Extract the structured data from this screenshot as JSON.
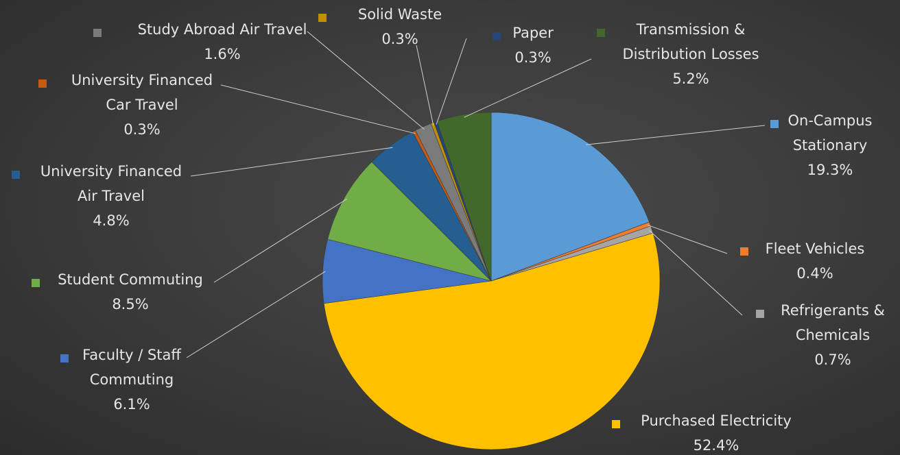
{
  "chart_data": {
    "type": "pie",
    "title": "",
    "start_angle_deg": 0,
    "direction": "clockwise",
    "legend": "none",
    "slices": [
      {
        "name": "On-Campus Stationary",
        "value": 19.3,
        "percent_label": "19.3%",
        "name_lines": [
          "On-Campus",
          "Stationary"
        ],
        "color": "#5b9bd5"
      },
      {
        "name": "Fleet Vehicles",
        "value": 0.4,
        "percent_label": "0.4%",
        "name_lines": [
          "Fleet Vehicles"
        ],
        "color": "#ed7d31"
      },
      {
        "name": "Refrigerants & Chemicals",
        "value": 0.7,
        "percent_label": "0.7%",
        "name_lines": [
          "Refrigerants &",
          "Chemicals"
        ],
        "color": "#a5a5a5"
      },
      {
        "name": "Purchased Electricity",
        "value": 52.4,
        "percent_label": "52.4%",
        "name_lines": [
          "Purchased Electricity"
        ],
        "color": "#ffc000"
      },
      {
        "name": "Faculty / Staff Commuting",
        "value": 6.1,
        "percent_label": "6.1%",
        "name_lines": [
          "Faculty / Staff",
          "Commuting"
        ],
        "color": "#4472c4"
      },
      {
        "name": "Student Commuting",
        "value": 8.5,
        "percent_label": "8.5%",
        "name_lines": [
          "Student Commuting"
        ],
        "color": "#70ad47"
      },
      {
        "name": "University Financed Air Travel",
        "value": 4.8,
        "percent_label": "4.8%",
        "name_lines": [
          "University Financed",
          "Air Travel"
        ],
        "color": "#255e91"
      },
      {
        "name": "University Financed Car Travel",
        "value": 0.3,
        "percent_label": "0.3%",
        "name_lines": [
          "University Financed",
          "Car Travel"
        ],
        "color": "#c55a11"
      },
      {
        "name": "Study Abroad Air Travel",
        "value": 1.6,
        "percent_label": "1.6%",
        "name_lines": [
          "Study Abroad Air Travel"
        ],
        "color": "#7b7b7b"
      },
      {
        "name": "Solid Waste",
        "value": 0.3,
        "percent_label": "0.3%",
        "name_lines": [
          "Solid Waste"
        ],
        "color": "#bf9000"
      },
      {
        "name": "Paper",
        "value": 0.3,
        "percent_label": "0.3%",
        "name_lines": [
          "Paper"
        ],
        "color": "#264478"
      },
      {
        "name": "Transmission & Distribution Losses",
        "value": 5.2,
        "percent_label": "5.2%",
        "name_lines": [
          "Transmission &",
          "Distribution Losses"
        ],
        "color": "#43682b"
      }
    ]
  }
}
